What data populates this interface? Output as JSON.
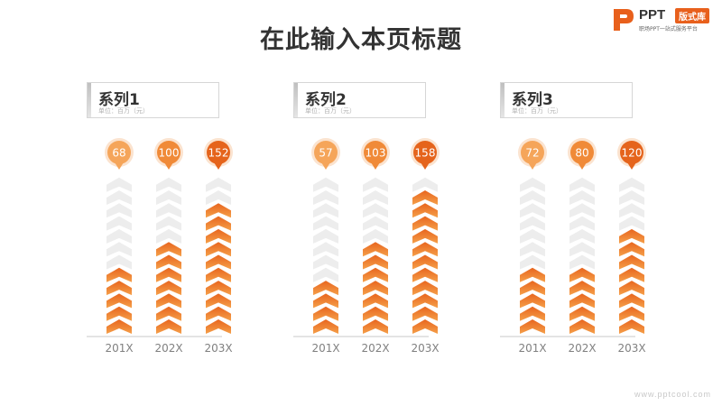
{
  "title": "在此输入本页标题",
  "logo": {
    "brand": "PPT",
    "tag": "版式库",
    "subtitle": "职场PPT一站式服务平台"
  },
  "watermark": "www.pptcool.com",
  "colors": {
    "arrow_on_top": "#e8651e",
    "arrow_on_bottom": "#f5a04a",
    "arrow_off": "#ededed",
    "bubble": [
      "#f5a55a",
      "#f08a38",
      "#e5641c"
    ]
  },
  "chart_data": [
    {
      "type": "bar",
      "title": "系列1",
      "subtitle": "单位：百万（元）",
      "categories": [
        "201X",
        "202X",
        "203X"
      ],
      "values": [
        68,
        100,
        152
      ],
      "ylim": [
        0,
        180
      ],
      "grid": false
    },
    {
      "type": "bar",
      "title": "系列2",
      "subtitle": "单位：百万（元）",
      "categories": [
        "201X",
        "202X",
        "203X"
      ],
      "values": [
        57,
        103,
        158
      ],
      "ylim": [
        0,
        180
      ],
      "grid": false
    },
    {
      "type": "bar",
      "title": "系列3",
      "subtitle": "单位：百万（元）",
      "categories": [
        "201X",
        "202X",
        "203X"
      ],
      "values": [
        72,
        80,
        120
      ],
      "ylim": [
        0,
        180
      ],
      "grid": false
    }
  ]
}
